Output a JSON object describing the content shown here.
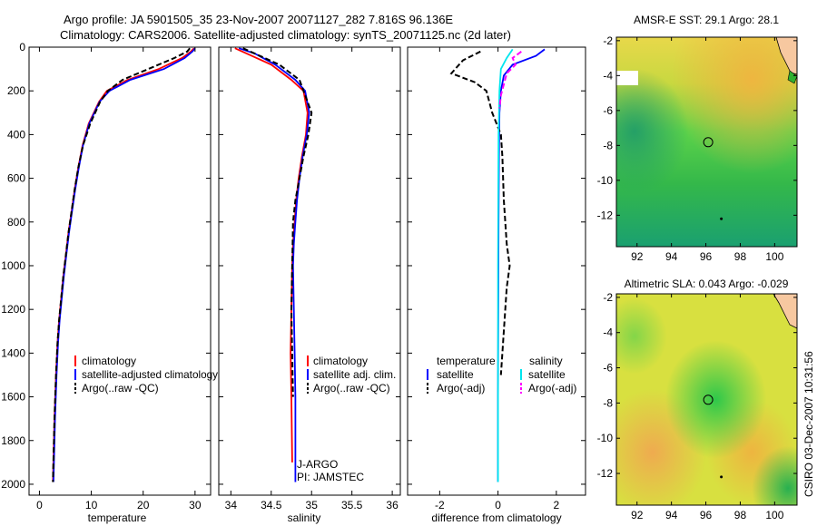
{
  "header": {
    "line1": "Argo profile: JA 5901505_35 23-Nov-2007 20071127_282 7.816S 96.136E",
    "line2": "Climatology: CARS2006. Satellite-adjusted climatology: synTS_20071125.nc (2d later)"
  },
  "footer": {
    "stamp": "CSIRO 03-Dec-2007 10:31:56"
  },
  "colors": {
    "climatology": "#ff0000",
    "satellite": "#0000ff",
    "argo": "#000000",
    "satellite_salinity": "#00e5ee",
    "argo_adj_salinity": "#ff00ff"
  },
  "chart_data": [
    {
      "id": "temp",
      "type": "line",
      "xlabel": "temperature",
      "xlim": [
        -2,
        33
      ],
      "ylim": [
        2050,
        0
      ],
      "xticks": [
        0,
        10,
        20,
        30
      ],
      "yticks": [
        0,
        200,
        400,
        600,
        800,
        1000,
        1200,
        1400,
        1600,
        1800,
        2000
      ],
      "legend_position": "lower-center",
      "legend": [
        "climatology",
        "satellite-adjusted climatology",
        "Argo(..raw -QC)"
      ],
      "series": [
        {
          "name": "climatology",
          "style": "solid",
          "color": "#ff0000",
          "x": [
            29.8,
            29.2,
            27.5,
            23,
            17,
            13,
            11.5,
            9.5,
            8.3,
            7.5,
            6.8,
            6.2,
            5.6,
            5.1,
            4.6,
            4.2,
            3.8,
            3.5,
            3.2,
            2.9,
            2.6
          ],
          "y": [
            5,
            20,
            50,
            100,
            150,
            200,
            250,
            350,
            450,
            550,
            650,
            750,
            850,
            950,
            1050,
            1150,
            1250,
            1350,
            1500,
            1700,
            1990
          ]
        },
        {
          "name": "satellite-adjusted climatology",
          "style": "solid",
          "color": "#0000ff",
          "x": [
            30,
            29.5,
            28,
            24,
            17.5,
            13.5,
            11.6,
            9.6,
            8.4,
            7.6,
            6.9,
            6.3,
            5.7,
            5.2,
            4.7,
            4.3,
            3.9,
            3.6,
            3.3,
            3,
            2.7
          ],
          "y": [
            5,
            20,
            50,
            100,
            150,
            200,
            250,
            350,
            450,
            550,
            650,
            750,
            850,
            950,
            1050,
            1150,
            1250,
            1350,
            1500,
            1700,
            1990
          ]
        },
        {
          "name": "Argo(..raw -QC)",
          "style": "dashed",
          "color": "#000000",
          "x": [
            29,
            28.5,
            26,
            21,
            16,
            13.2,
            11.7,
            9.8,
            8.4,
            7.5,
            6.8,
            6.2,
            5.6,
            5.1,
            4.6,
            4.2,
            3.8,
            3.5,
            3.2,
            2.9,
            2.6
          ],
          "y": [
            5,
            20,
            50,
            100,
            150,
            200,
            250,
            350,
            450,
            550,
            650,
            750,
            850,
            950,
            1050,
            1150,
            1250,
            1350,
            1500,
            1700,
            1990
          ]
        }
      ]
    },
    {
      "id": "sal",
      "type": "line",
      "xlabel": "salinity",
      "xlim": [
        33.85,
        36.1
      ],
      "ylim": [
        2050,
        0
      ],
      "xticks": [
        34,
        34.5,
        35,
        35.5,
        36
      ],
      "legend_position": "lower-center",
      "legend": [
        "climatology",
        "satellite adj. clim.",
        "Argo(..raw -QC)"
      ],
      "annotations": [
        "J-ARGO",
        "PI: JAMSTEC"
      ],
      "series": [
        {
          "name": "climatology",
          "style": "solid",
          "color": "#ff0000",
          "x": [
            34.05,
            34.2,
            34.5,
            34.75,
            34.9,
            34.95,
            34.93,
            34.88,
            34.84,
            34.81,
            34.79,
            34.77,
            34.76,
            34.75,
            34.74,
            34.75,
            34.76
          ],
          "y": [
            5,
            30,
            80,
            150,
            200,
            300,
            400,
            500,
            600,
            700,
            800,
            900,
            1000,
            1200,
            1400,
            1600,
            1900
          ]
        },
        {
          "name": "satellite adj. clim.",
          "style": "solid",
          "color": "#0000ff",
          "x": [
            34.1,
            34.3,
            34.55,
            34.8,
            34.92,
            34.97,
            34.94,
            34.89,
            34.85,
            34.82,
            34.8,
            34.78,
            34.77,
            34.78,
            34.79,
            34.8,
            34.8
          ],
          "y": [
            5,
            30,
            80,
            150,
            200,
            300,
            400,
            500,
            600,
            700,
            800,
            900,
            1000,
            1200,
            1400,
            1600,
            1990
          ]
        },
        {
          "name": "Argo(..raw -QC)",
          "style": "dashed",
          "color": "#000000",
          "x": [
            34.15,
            34.3,
            34.6,
            34.85,
            34.95,
            35,
            34.96,
            34.9,
            34.85,
            34.8,
            34.77,
            34.76,
            34.75,
            34.76,
            34.77
          ],
          "y": [
            5,
            30,
            80,
            150,
            250,
            300,
            400,
            500,
            600,
            700,
            800,
            1000,
            1200,
            1400,
            1600
          ]
        }
      ]
    },
    {
      "id": "diff",
      "type": "line",
      "xlabel": "difference from climatology",
      "xlim": [
        -3.1,
        3.0
      ],
      "ylim": [
        2050,
        0
      ],
      "xticks": [
        -2,
        0,
        2
      ],
      "legend_position": "lower-center",
      "legend_temperature": {
        "title": "temperature",
        "items": [
          "satellite",
          "Argo(-adj)"
        ]
      },
      "legend_salinity": {
        "title": "salinity",
        "items": [
          "satellite",
          "Argo(-adj)"
        ]
      },
      "series": [
        {
          "name": "temperature satellite",
          "style": "solid",
          "color": "#0000ff",
          "x": [
            1.6,
            1.3,
            0.5,
            0.2,
            0.1,
            0.05,
            0.03,
            0.02,
            0.01,
            0,
            0
          ],
          "y": [
            10,
            40,
            80,
            130,
            200,
            300,
            500,
            800,
            1200,
            1600,
            1990
          ]
        },
        {
          "name": "temperature Argo(-adj)",
          "style": "dashed",
          "color": "#000000",
          "x": [
            -0.6,
            -1.2,
            -1.6,
            -0.8,
            -0.4,
            -0.2,
            0.1,
            0.15,
            0.2,
            0.3,
            0.4,
            0.3,
            0.2,
            0.1
          ],
          "y": [
            20,
            60,
            120,
            160,
            200,
            300,
            400,
            500,
            700,
            900,
            1000,
            1100,
            1300,
            1500
          ]
        },
        {
          "name": "salinity satellite",
          "style": "solid",
          "color": "#00e5ee",
          "x": [
            0.5,
            0.3,
            0.1,
            0.05,
            0.02,
            0.01,
            0,
            0,
            0
          ],
          "y": [
            10,
            50,
            100,
            200,
            400,
            700,
            1000,
            1500,
            1990
          ]
        },
        {
          "name": "salinity Argo(-adj)",
          "style": "dashed",
          "color": "#ff00ff",
          "x": [
            0.8,
            0.5,
            0.6,
            0.3,
            0.2,
            0.1,
            0.05
          ],
          "y": [
            20,
            50,
            80,
            120,
            170,
            220,
            280
          ]
        }
      ]
    },
    {
      "id": "sst",
      "type": "heatmap",
      "title": "AMSR-E SST: 29.1 Argo: 28.1",
      "xlim": [
        90.8,
        101.3
      ],
      "ylim": [
        -13.8,
        -1.8
      ],
      "xticks": [
        92,
        94,
        96,
        98,
        100
      ],
      "yticks": [
        -2,
        -4,
        -6,
        -8,
        -10,
        -12
      ],
      "argo_position": [
        96.136,
        -7.816
      ],
      "marker_point": [
        96.9,
        -12.2
      ]
    },
    {
      "id": "sla",
      "type": "heatmap",
      "title": "Altimetric SLA: 0.043 Argo: -0.029",
      "xlim": [
        90.8,
        101.3
      ],
      "ylim": [
        -13.8,
        -1.8
      ],
      "xticks": [
        92,
        94,
        96,
        98,
        100
      ],
      "yticks": [
        -2,
        -4,
        -6,
        -8,
        -10,
        -12
      ],
      "argo_position": [
        96.136,
        -7.816
      ],
      "marker_point": [
        96.9,
        -12.2
      ]
    }
  ]
}
